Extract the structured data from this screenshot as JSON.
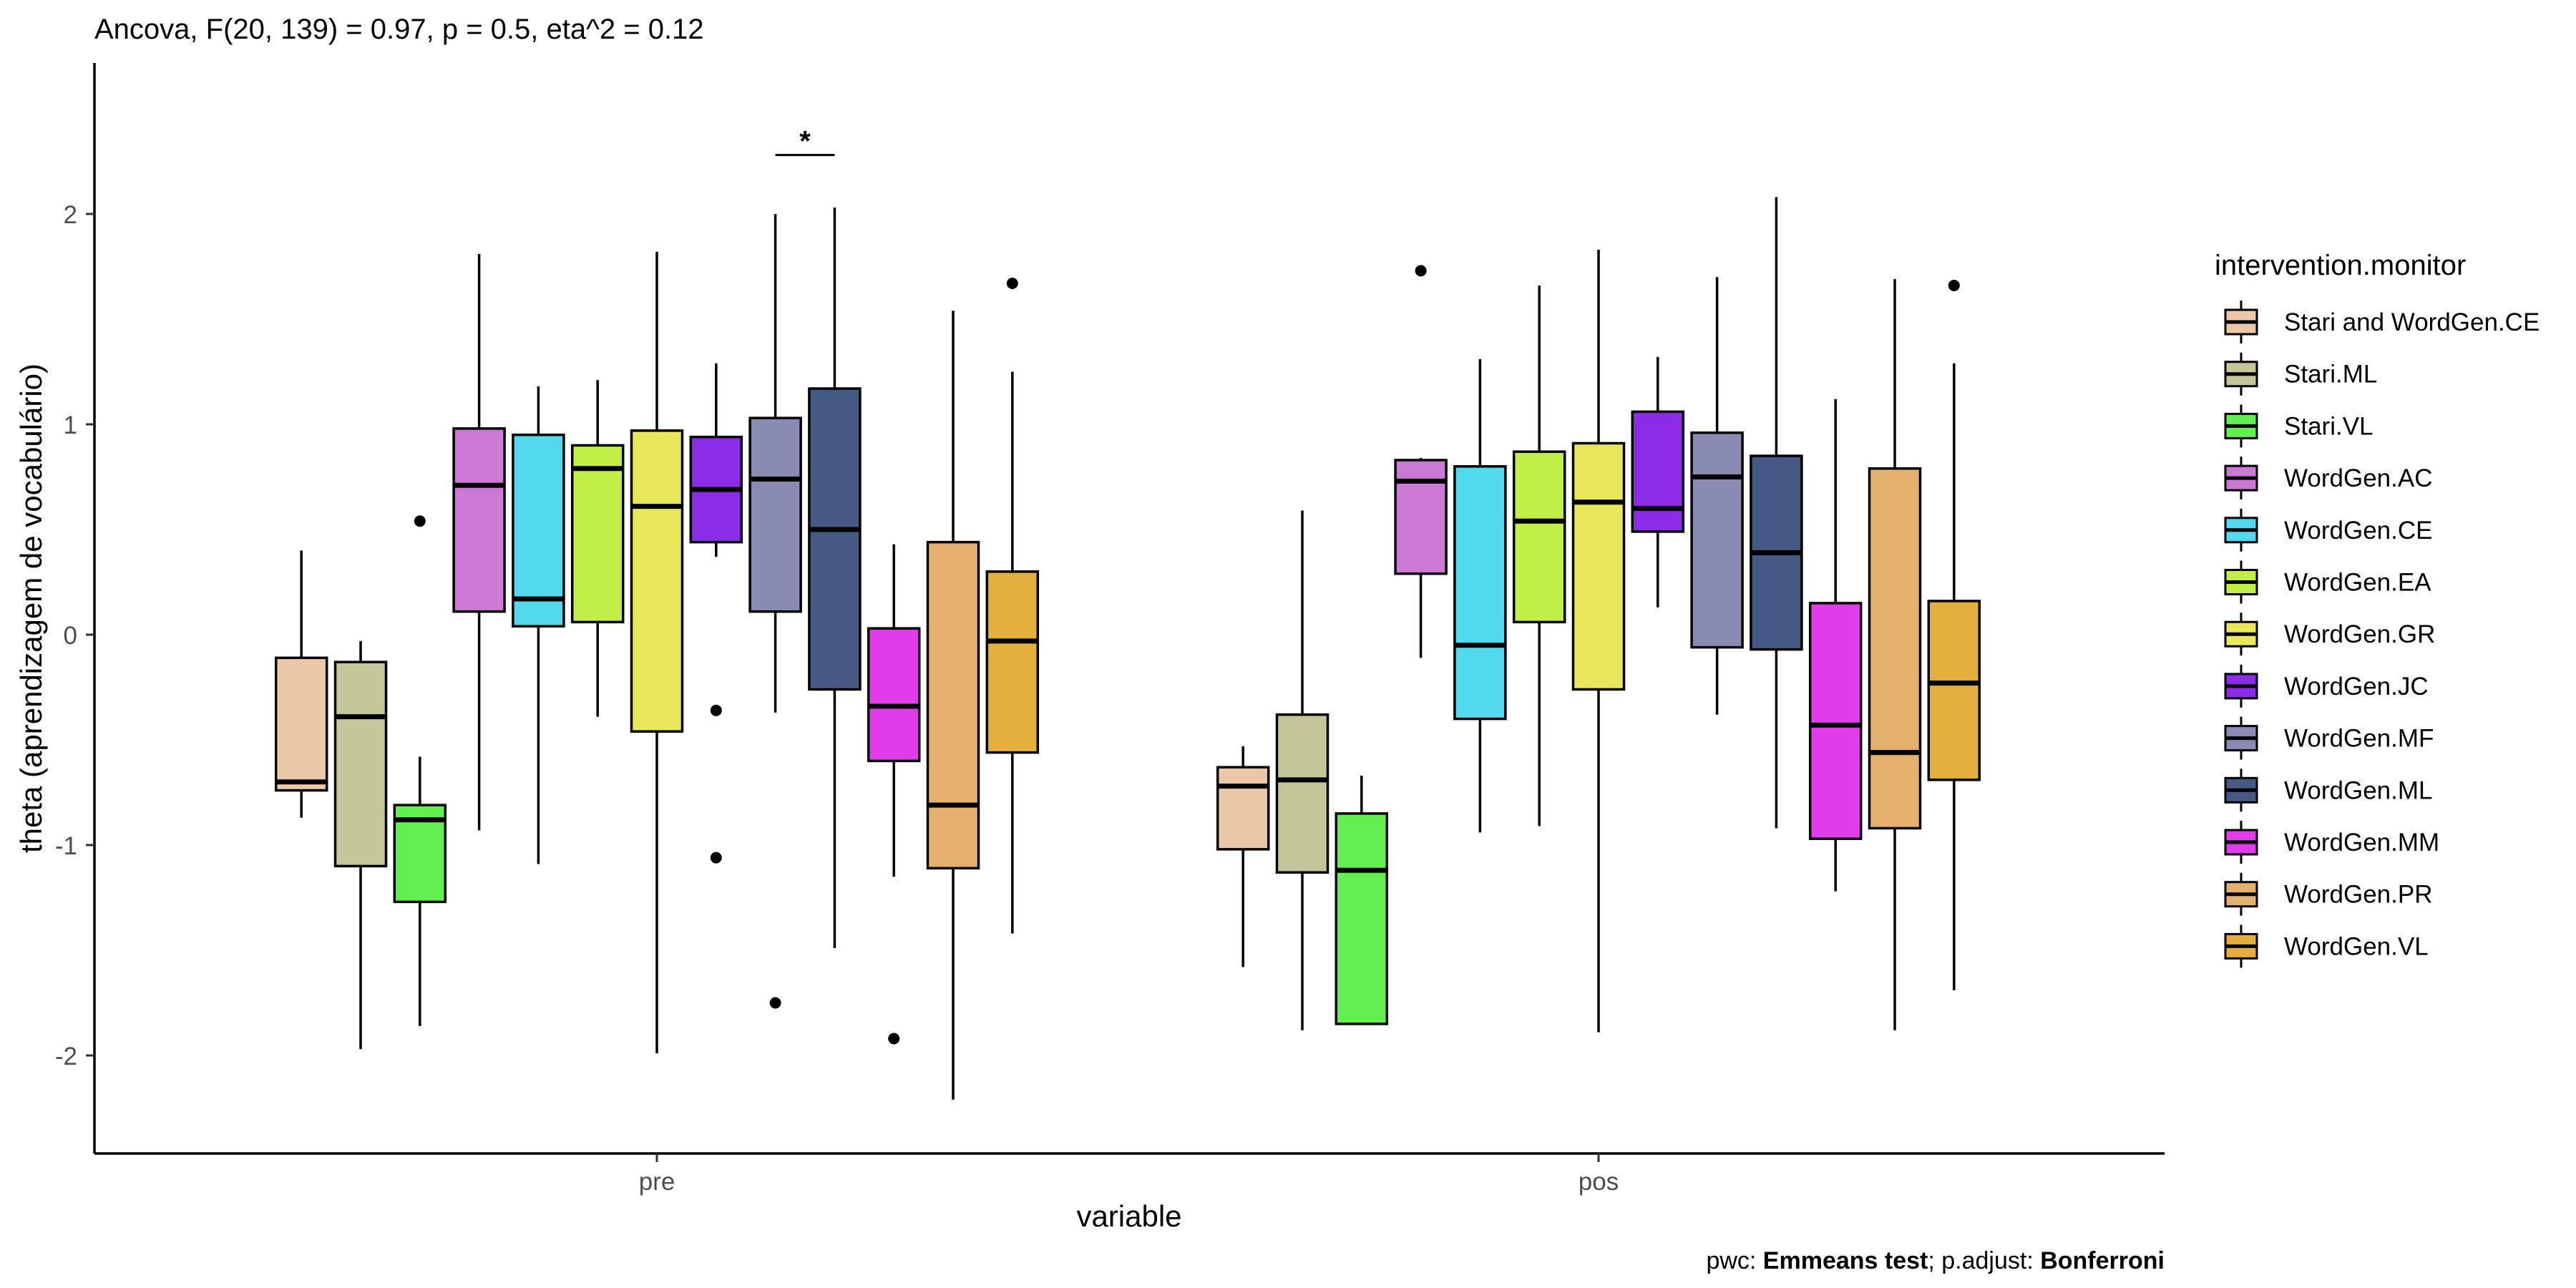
{
  "chart_data": {
    "type": "boxplot",
    "title": "Ancova, F(20, 139) = 0.97, p = 0.5, eta^2 = 0.12",
    "xlabel": "variable",
    "ylabel": "theta (aprendizagem de vocabulário)",
    "categories": [
      "pre",
      "pos"
    ],
    "ylim": [
      -2.45,
      2.7
    ],
    "yticks": [
      -2,
      -1,
      0,
      1,
      2
    ],
    "grid": false,
    "legend": {
      "title": "intervention.monitor",
      "position": "right"
    },
    "caption": {
      "part1": "pwc: ",
      "part2": "Emmeans test",
      "part3": "; p.adjust: ",
      "part4": "Bonferroni"
    },
    "significance": [
      {
        "category": "pre",
        "from": "WordGen.MF",
        "to": "WordGen.ML",
        "y": 2.28,
        "label": "*"
      }
    ],
    "series": [
      {
        "name": "Stari and WordGen.CE",
        "color": "#EBC8A8",
        "pre": {
          "lower": -0.87,
          "q1": -0.74,
          "median": -0.7,
          "q3": -0.11,
          "upper": 0.4,
          "outliers": []
        },
        "pos": {
          "lower": -1.58,
          "q1": -1.02,
          "median": -0.72,
          "q3": -0.63,
          "upper": -0.53,
          "outliers": []
        }
      },
      {
        "name": "Stari.ML",
        "color": "#C5C59A",
        "pre": {
          "lower": -1.97,
          "q1": -1.1,
          "median": -0.39,
          "q3": -0.13,
          "upper": -0.03,
          "outliers": []
        },
        "pos": {
          "lower": -1.88,
          "q1": -1.13,
          "median": -0.69,
          "q3": -0.38,
          "upper": 0.59,
          "outliers": []
        }
      },
      {
        "name": "Stari.VL",
        "color": "#61F04F",
        "pre": {
          "lower": -1.86,
          "q1": -1.27,
          "median": -0.88,
          "q3": -0.81,
          "upper": -0.58,
          "outliers": [
            0.54
          ]
        },
        "pos": {
          "lower": -1.85,
          "q1": -1.85,
          "median": -1.12,
          "q3": -0.85,
          "upper": -0.67,
          "outliers": []
        }
      },
      {
        "name": "WordGen.AC",
        "color": "#CC79D6",
        "pre": {
          "lower": -0.93,
          "q1": 0.11,
          "median": 0.71,
          "q3": 0.98,
          "upper": 1.81,
          "outliers": []
        },
        "pos": {
          "lower": -0.11,
          "q1": 0.29,
          "median": 0.73,
          "q3": 0.83,
          "upper": 0.84,
          "outliers": [
            1.73
          ]
        }
      },
      {
        "name": "WordGen.CE",
        "color": "#52D9ED",
        "pre": {
          "lower": -1.09,
          "q1": 0.04,
          "median": 0.17,
          "q3": 0.95,
          "upper": 1.18,
          "outliers": []
        },
        "pos": {
          "lower": -0.94,
          "q1": -0.4,
          "median": -0.05,
          "q3": 0.8,
          "upper": 1.31,
          "outliers": []
        }
      },
      {
        "name": "WordGen.EA",
        "color": "#C2EF45",
        "pre": {
          "lower": -0.39,
          "q1": 0.06,
          "median": 0.79,
          "q3": 0.9,
          "upper": 1.21,
          "outliers": []
        },
        "pos": {
          "lower": -0.91,
          "q1": 0.06,
          "median": 0.54,
          "q3": 0.87,
          "upper": 1.66,
          "outliers": []
        }
      },
      {
        "name": "WordGen.GR",
        "color": "#E8E65A",
        "pre": {
          "lower": -1.99,
          "q1": -0.46,
          "median": 0.61,
          "q3": 0.97,
          "upper": 1.82,
          "outliers": []
        },
        "pos": {
          "lower": -1.89,
          "q1": -0.26,
          "median": 0.63,
          "q3": 0.91,
          "upper": 1.83,
          "outliers": []
        }
      },
      {
        "name": "WordGen.JC",
        "color": "#8B2BE8",
        "pre": {
          "lower": 0.37,
          "q1": 0.44,
          "median": 0.69,
          "q3": 0.94,
          "upper": 1.29,
          "outliers": [
            -0.36,
            -1.06
          ]
        },
        "pos": {
          "lower": 0.13,
          "q1": 0.49,
          "median": 0.6,
          "q3": 1.06,
          "upper": 1.32,
          "outliers": []
        }
      },
      {
        "name": "WordGen.MF",
        "color": "#8A8BB3",
        "pre": {
          "lower": -0.37,
          "q1": 0.11,
          "median": 0.74,
          "q3": 1.03,
          "upper": 2.0,
          "outliers": [
            -1.75
          ]
        },
        "pos": {
          "lower": -0.38,
          "q1": -0.06,
          "median": 0.75,
          "q3": 0.96,
          "upper": 1.7,
          "outliers": []
        }
      },
      {
        "name": "WordGen.ML",
        "color": "#445A85",
        "pre": {
          "lower": -1.49,
          "q1": -0.26,
          "median": 0.5,
          "q3": 1.17,
          "upper": 2.03,
          "outliers": []
        },
        "pos": {
          "lower": -0.92,
          "q1": -0.07,
          "median": 0.39,
          "q3": 0.85,
          "upper": 2.08,
          "outliers": []
        }
      },
      {
        "name": "WordGen.MM",
        "color": "#E23DEA",
        "pre": {
          "lower": -1.15,
          "q1": -0.6,
          "median": -0.34,
          "q3": 0.03,
          "upper": 0.43,
          "outliers": [
            -1.92
          ]
        },
        "pos": {
          "lower": -1.22,
          "q1": -0.97,
          "median": -0.43,
          "q3": 0.15,
          "upper": 1.12,
          "outliers": []
        }
      },
      {
        "name": "WordGen.PR",
        "color": "#E3B06D",
        "pre": {
          "lower": -2.21,
          "q1": -1.11,
          "median": -0.81,
          "q3": 0.44,
          "upper": 1.54,
          "outliers": []
        },
        "pos": {
          "lower": -1.88,
          "q1": -0.92,
          "median": -0.56,
          "q3": 0.79,
          "upper": 1.69,
          "outliers": []
        }
      },
      {
        "name": "WordGen.VL",
        "color": "#E3AE3C",
        "pre": {
          "lower": -1.42,
          "q1": -0.56,
          "median": -0.03,
          "q3": 0.3,
          "upper": 1.25,
          "outliers": [
            1.67
          ]
        },
        "pos": {
          "lower": -1.69,
          "q1": -0.69,
          "median": -0.23,
          "q3": 0.16,
          "upper": 1.29,
          "outliers": [
            1.66
          ]
        }
      }
    ]
  }
}
